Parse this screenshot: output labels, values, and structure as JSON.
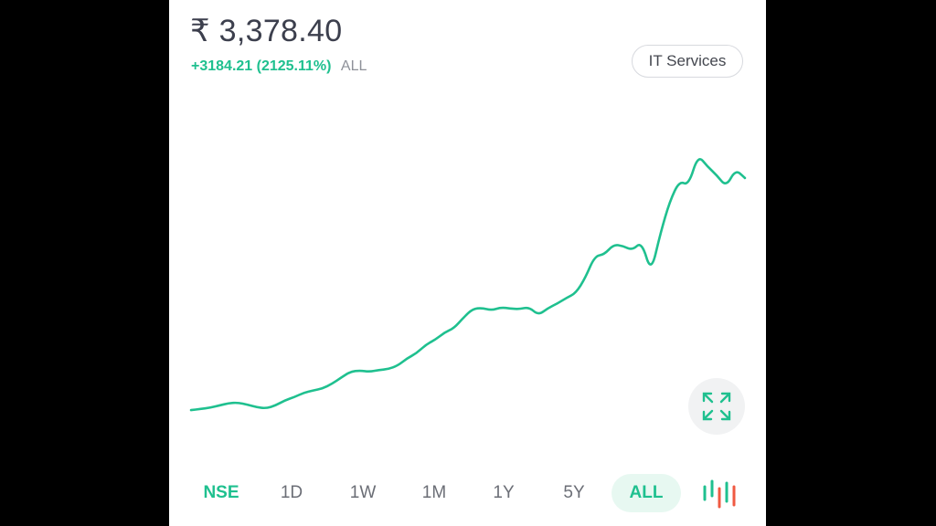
{
  "quote": {
    "price": "₹ 3,378.40",
    "change": "+3184.21 (2125.11%)",
    "period": "ALL"
  },
  "sector_tag": "IT Services",
  "colors": {
    "accent": "#1fc08f",
    "text_primary": "#3c3f4d",
    "candle_red": "#f05a42"
  },
  "chart_data": {
    "type": "line",
    "series": [
      {
        "values": [
          0.6,
          1.0,
          1.4,
          2.2,
          3.0,
          3.2,
          2.5,
          1.6,
          1.2,
          2.2,
          4.0,
          5.1,
          6.6,
          7.4,
          8.1,
          9.7,
          11.9,
          14.0,
          14.3,
          13.9,
          14.5,
          14.8,
          16.0,
          18.5,
          20.3,
          23.2,
          25.0,
          27.5,
          29.0,
          32.6,
          35.7,
          36.0,
          35.2,
          36.2,
          35.8,
          35.6,
          36.3,
          33.5,
          35.9,
          37.5,
          39.5,
          41.2,
          46.5,
          54.0,
          54.5,
          58.0,
          57.5,
          56.0,
          59.0,
          48.0,
          62.0,
          73.0,
          80.0,
          78.5,
          89.0,
          85.0,
          82.0,
          78.0,
          84.0,
          81.0
        ]
      }
    ],
    "ylim": [
      0,
      100
    ],
    "grid": false,
    "legend": "none"
  },
  "range_selector": {
    "exchange": "NSE",
    "options": [
      "1D",
      "1W",
      "1M",
      "1Y",
      "5Y",
      "ALL"
    ],
    "selected": "ALL"
  },
  "icons": {
    "expand": "expand-arrows-icon",
    "chart_type": "candlestick-icon"
  }
}
